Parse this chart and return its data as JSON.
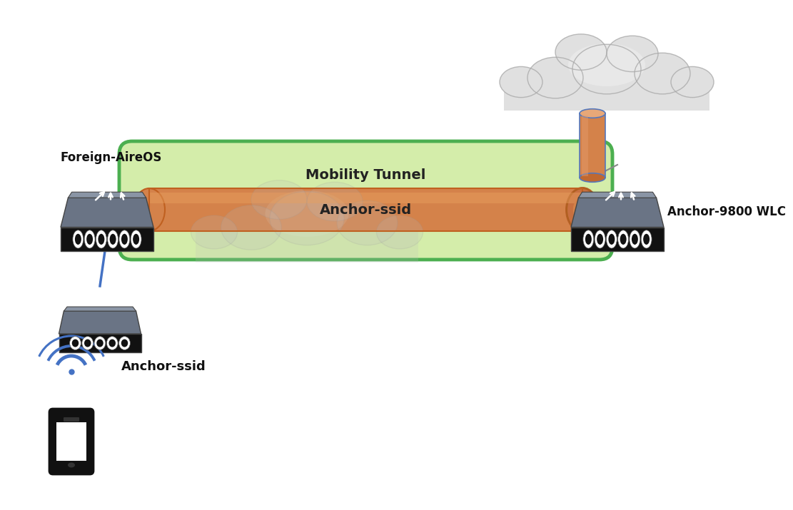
{
  "bg_color": "#ffffff",
  "fig_width": 9.99,
  "fig_height": 6.96,
  "tunnel_color_fill": "#d4edaa",
  "tunnel_color_edge": "#4caf50",
  "orange_color": "#d4824a",
  "mobility_tunnel_text": "Mobility Tunnel",
  "anchor_ssid_text": "Anchor-ssid",
  "foreign_label": "Foreign-AireOS",
  "anchor_label": "Anchor-9800 WLC",
  "blue_line_color": "#4472c4",
  "orange_cyl_color": "#d4824a",
  "wifi_label": "Anchor-ssid"
}
